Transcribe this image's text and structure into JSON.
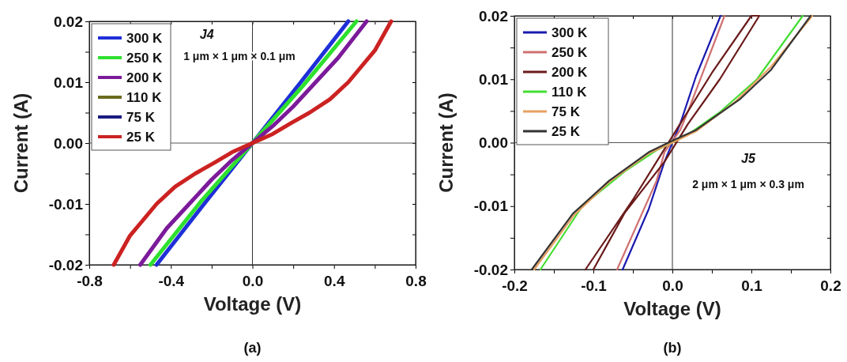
{
  "chart_data": [
    {
      "type": "line",
      "title": "(a)",
      "xlabel": "Voltage (V)",
      "ylabel": "Current (A)",
      "annotations": [
        "J4",
        "1 μm × 1 μm × 0.1 μm"
      ],
      "xlim": [
        -0.8,
        0.8
      ],
      "xticks": [
        -0.8,
        {
          "value": -0.6,
          "label": null
        },
        -0.4,
        {
          "value": -0.2,
          "label": null
        },
        {
          "value": 0,
          "label": "0.0"
        },
        {
          "value": 0.2,
          "label": null
        },
        0.4,
        {
          "value": 0.6,
          "label": null
        },
        0.8
      ],
      "ylim": [
        -0.02,
        0.02
      ],
      "yticks": [
        -0.02,
        {
          "value": -0.015,
          "label": null
        },
        -0.01,
        {
          "value": -0.005,
          "label": null
        },
        {
          "value": 0,
          "label": "0.00"
        },
        {
          "value": 0.005,
          "label": null
        },
        0.01,
        {
          "value": 0.015,
          "label": null
        },
        0.02
      ],
      "grid": false,
      "legend": "top left",
      "line_style": "solid",
      "ref_lines": [
        {
          "axis": "x",
          "value": 0,
          "color": "#333333"
        },
        {
          "axis": "y",
          "value": 0,
          "color": "#555555"
        }
      ],
      "series": [
        {
          "name": "300 K",
          "color": "#1f2fd8",
          "x": [
            -0.47,
            -0.23,
            0,
            0.23,
            0.47
          ],
          "values": [
            -0.02,
            -0.0097,
            0,
            0.0097,
            0.02
          ]
        },
        {
          "name": "250 K",
          "color": "#2ee02e",
          "x": [
            -0.5,
            -0.25,
            0,
            0.25,
            0.51
          ],
          "values": [
            -0.02,
            -0.0095,
            0,
            0.0095,
            0.02
          ]
        },
        {
          "name": "200 K",
          "color": "#7b1a9a",
          "x": [
            -0.55,
            -0.42,
            -0.31,
            -0.2,
            -0.1,
            0,
            0.1,
            0.2,
            0.31,
            0.42,
            0.56
          ],
          "values": [
            -0.02,
            -0.014,
            -0.01,
            -0.006,
            -0.0028,
            0,
            0.0028,
            0.006,
            0.01,
            0.014,
            0.02
          ]
        },
        {
          "name": "110 K",
          "color": "#6b6b20",
          "values": [
            null
          ]
        },
        {
          "name": "75 K",
          "color": "#1a1a80",
          "values": [
            null
          ]
        },
        {
          "name": "25 K",
          "color": "#cc2222",
          "x": [
            -0.68,
            -0.6,
            -0.47,
            -0.38,
            -0.28,
            -0.19,
            -0.1,
            0,
            0.1,
            0.19,
            0.28,
            0.38,
            0.47,
            0.6,
            0.68
          ],
          "values": [
            -0.02,
            -0.0152,
            -0.01,
            -0.0072,
            -0.005,
            -0.0033,
            -0.0015,
            0,
            0.0015,
            0.0033,
            0.005,
            0.0072,
            0.01,
            0.0152,
            0.02
          ]
        }
      ]
    },
    {
      "type": "line",
      "title": "(b)",
      "xlabel": "Voltage (V)",
      "ylabel": "Current (A)",
      "annotations": [
        "J5",
        "2 μm × 1 μm × 0.3 μm"
      ],
      "xlim": [
        -0.2,
        0.2
      ],
      "xticks": [
        -0.2,
        {
          "value": -0.15,
          "label": null
        },
        -0.1,
        {
          "value": -0.05,
          "label": null
        },
        {
          "value": 0,
          "label": "0.0"
        },
        {
          "value": 0.05,
          "label": null
        },
        0.1,
        {
          "value": 0.15,
          "label": null
        },
        0.2
      ],
      "ylim": [
        -0.02,
        0.02
      ],
      "yticks": [
        -0.02,
        {
          "value": -0.015,
          "label": null
        },
        -0.01,
        {
          "value": -0.005,
          "label": null
        },
        {
          "value": 0,
          "label": "0.00"
        },
        {
          "value": 0.005,
          "label": null
        },
        0.01,
        {
          "value": 0.015,
          "label": null
        },
        0.02
      ],
      "grid": false,
      "legend": "top left",
      "line_style": "solid",
      "ref_lines": [
        {
          "axis": "x",
          "value": 0,
          "color": "#333333"
        },
        {
          "axis": "y",
          "value": 0,
          "color": "#555555"
        }
      ],
      "series": [
        {
          "name": "300 K",
          "color": "#1a1ab0",
          "x": [
            -0.063,
            -0.03,
            -0.01,
            0.01,
            0.03,
            0.061
          ],
          "values": [
            -0.02,
            -0.0105,
            -0.003,
            0.003,
            0.0105,
            0.02
          ]
        },
        {
          "name": "250 K",
          "color": "#d07070",
          "x": [
            -0.07,
            -0.02,
            -0.01,
            0.01,
            0.02,
            0.066
          ],
          "values": [
            -0.02,
            -0.006,
            -0.0015,
            0.002,
            0.005,
            0.02
          ]
        },
        {
          "name": "200 K",
          "color": "#6a1a1a",
          "x": [
            -0.11,
            -0.05,
            -0.02,
            0.01,
            0.05,
            0.1,
            0.11,
            0.06,
            0.02,
            -0.01,
            -0.06,
            -0.1
          ],
          "values": [
            -0.02,
            -0.009,
            -0.003,
            0.003,
            0.011,
            0.02,
            0.02,
            0.01,
            0.003,
            -0.003,
            -0.011,
            -0.02
          ]
        },
        {
          "name": "110 K",
          "color": "#44dd33",
          "x": [
            -0.167,
            -0.114,
            -0.06,
            -0.02,
            0,
            0.02,
            0.06,
            0.107,
            0.165
          ],
          "values": [
            -0.02,
            -0.01,
            -0.0045,
            -0.0012,
            0,
            0.0013,
            0.0048,
            0.01,
            0.02
          ]
        },
        {
          "name": "75 K",
          "color": "#e8a060",
          "x": [
            -0.175,
            -0.125,
            -0.08,
            -0.03,
            0,
            0.03,
            0.08,
            0.125,
            0.177
          ],
          "values": [
            -0.02,
            -0.0115,
            -0.0062,
            -0.0017,
            0,
            0.0018,
            0.0065,
            0.012,
            0.02
          ]
        },
        {
          "name": "25 K",
          "color": "#333333",
          "x": [
            -0.178,
            -0.126,
            -0.08,
            -0.03,
            0,
            0.03,
            0.085,
            0.125,
            0.175
          ],
          "values": [
            -0.02,
            -0.0112,
            -0.006,
            -0.0015,
            0.0003,
            0.002,
            0.0068,
            0.0115,
            0.02
          ]
        }
      ]
    }
  ]
}
